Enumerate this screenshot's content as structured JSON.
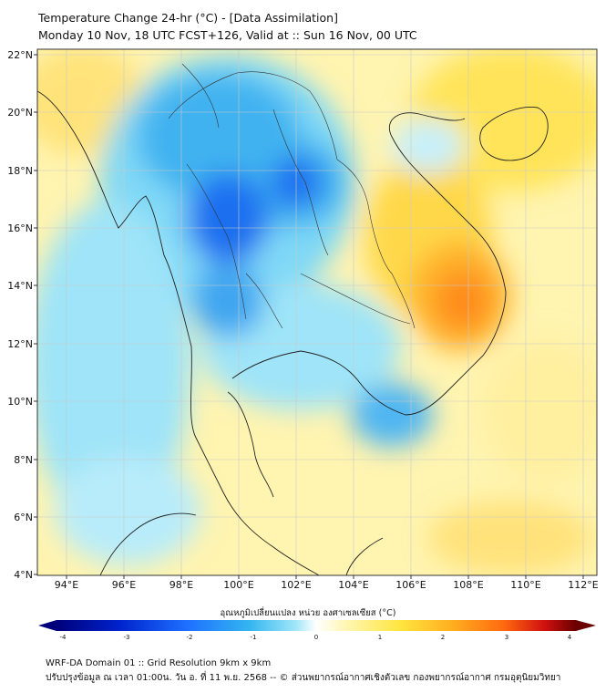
{
  "header": {
    "title_line1": "Temperature Change 24-hr (°C) - [Data Assimilation]",
    "title_line2": "Monday 10 Nov, 18 UTC FCST+126, Valid at :: Sun 16 Nov, 00 UTC"
  },
  "map": {
    "lon_ticks": [
      "94°E",
      "96°E",
      "98°E",
      "100°E",
      "102°E",
      "104°E",
      "106°E",
      "108°E",
      "110°E",
      "112°E"
    ],
    "lat_ticks": [
      "22°N",
      "20°N",
      "18°N",
      "16°N",
      "14°N",
      "12°N",
      "10°N",
      "8°N",
      "6°N",
      "4°N"
    ]
  },
  "colorbar": {
    "title": "อุณหภูมิเปลี่ยนแปลง หน่วย องศาเซลเซียส (°C)",
    "ticks": [
      "-4",
      "-3",
      "-2",
      "-1",
      "0",
      "1",
      "2",
      "3",
      "4"
    ],
    "colors": [
      "#00007a",
      "#0022cc",
      "#1e6fff",
      "#33b5f0",
      "#9fe6f8",
      "#ffffff",
      "#fff6b0",
      "#ffe640",
      "#ffb020",
      "#ff6a10",
      "#d01010",
      "#6a0000"
    ]
  },
  "footer": {
    "line1": "WRF-DA Domain 01 :: Grid Resolution 9km x 9km",
    "line2": "ปรับปรุงข้อมูล ณ เวลา 01:00น. วัน อ. ที่ 11 พ.ย. 2568 -- © ส่วนพยากรณ์อากาศเชิงตัวเลข กองพยากรณ์อากาศ กรมอุตุนิยมวิทยา"
  }
}
